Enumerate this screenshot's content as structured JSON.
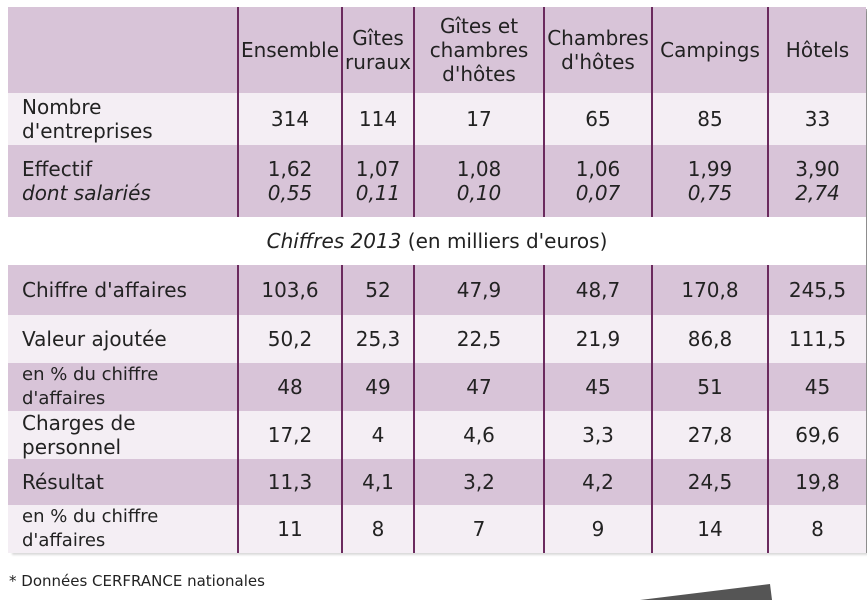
{
  "columns": [
    "Ensemble",
    "Gîtes ruraux",
    "Gîtes et chambres d'hôtes",
    "Chambres d'hôtes",
    "Campings",
    "Hôtels"
  ],
  "header": {
    "col1_l1": "Ensemble",
    "col2_l1": "Gîtes",
    "col2_l2": "ruraux",
    "col3_l1": "Gîtes et",
    "col3_l2": "chambres",
    "col3_l3": "d'hôtes",
    "col4_l1": "Chambres",
    "col4_l2": "d'hôtes",
    "col5_l1": "Campings",
    "col6_l1": "Hôtels"
  },
  "rows_top": [
    {
      "label": "Nombre d'entreprises",
      "values": [
        "314",
        "114",
        "17",
        "65",
        "85",
        "33"
      ]
    }
  ],
  "effectif": {
    "label": "Effectif",
    "sublabel": "dont salariés",
    "values": [
      "1,62",
      "1,07",
      "1,08",
      "1,06",
      "1,99",
      "3,90"
    ],
    "subvalues": [
      "0,55",
      "0,11",
      "0,10",
      "0,07",
      "0,75",
      "2,74"
    ]
  },
  "section": {
    "title_em": "Chiffres 2013",
    "title_rest": " (en milliers d'euros)"
  },
  "rows_bottom": [
    {
      "label": "Chiffre d'affaires",
      "values": [
        "103,6",
        "52",
        "47,9",
        "48,7",
        "170,8",
        "245,5"
      ]
    },
    {
      "label": "Valeur ajoutée",
      "values": [
        "50,2",
        "25,3",
        "22,5",
        "21,9",
        "86,8",
        "111,5"
      ]
    },
    {
      "label": "en % du chiffre d'affaires",
      "values": [
        "48",
        "49",
        "47",
        "45",
        "51",
        "45"
      ]
    },
    {
      "label": "Charges de personnel",
      "values": [
        "17,2",
        "4",
        "4,6",
        "3,3",
        "27,8",
        "69,6"
      ]
    },
    {
      "label": "Résultat",
      "values": [
        "11,3",
        "4,1",
        "3,2",
        "4,2",
        "24,5",
        "19,8"
      ]
    },
    {
      "label": "en % du chiffre d'affaires",
      "values": [
        "11",
        "8",
        "7",
        "9",
        "14",
        "8"
      ]
    }
  ],
  "footnote": "* Données CERFRANCE nationales",
  "colors": {
    "purple_band": "#d8c4d8",
    "light_band": "#f4eef4",
    "separator": "#6b2a5e"
  }
}
